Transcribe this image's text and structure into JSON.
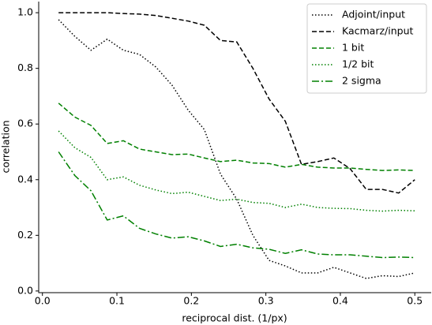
{
  "chart_data": {
    "type": "line",
    "xlabel": "reciprocal dist. (1/px)",
    "ylabel": "correlation",
    "x": [
      0.0217,
      0.0435,
      0.0652,
      0.087,
      0.1087,
      0.1304,
      0.1522,
      0.1739,
      0.1957,
      0.2174,
      0.2391,
      0.2609,
      0.2826,
      0.3043,
      0.3261,
      0.3478,
      0.3696,
      0.3913,
      0.413,
      0.4348,
      0.4565,
      0.4783,
      0.5
    ],
    "series": [
      {
        "name": "Adjoint/input",
        "color": "#000000",
        "dash": "dotted",
        "values": [
          0.975,
          0.915,
          0.865,
          0.905,
          0.865,
          0.85,
          0.805,
          0.74,
          0.65,
          0.58,
          0.42,
          0.33,
          0.2,
          0.11,
          0.09,
          0.065,
          0.065,
          0.085,
          0.065,
          0.045,
          0.055,
          0.052,
          0.065
        ]
      },
      {
        "name": "Kacmarz/input",
        "color": "#000000",
        "dash": "dashed",
        "values": [
          1.0,
          1.0,
          1.0,
          1.0,
          0.997,
          0.995,
          0.99,
          0.98,
          0.97,
          0.955,
          0.9,
          0.895,
          0.8,
          0.69,
          0.61,
          0.455,
          0.465,
          0.478,
          0.44,
          0.365,
          0.365,
          0.352,
          0.4
        ]
      },
      {
        "name": "1 bit",
        "color": "#008000",
        "dash": "dashed",
        "values": [
          0.675,
          0.625,
          0.595,
          0.53,
          0.54,
          0.51,
          0.5,
          0.49,
          0.492,
          0.478,
          0.465,
          0.47,
          0.46,
          0.458,
          0.445,
          0.455,
          0.445,
          0.442,
          0.442,
          0.437,
          0.433,
          0.435,
          0.433
        ]
      },
      {
        "name": "1/2 bit",
        "color": "#008000",
        "dash": "dotted",
        "values": [
          0.575,
          0.515,
          0.48,
          0.4,
          0.41,
          0.38,
          0.363,
          0.35,
          0.355,
          0.34,
          0.325,
          0.33,
          0.318,
          0.315,
          0.3,
          0.312,
          0.3,
          0.297,
          0.296,
          0.29,
          0.287,
          0.29,
          0.288
        ]
      },
      {
        "name": "2 sigma",
        "color": "#008000",
        "dash": "dashdot",
        "values": [
          0.5,
          0.415,
          0.36,
          0.255,
          0.27,
          0.225,
          0.205,
          0.19,
          0.195,
          0.18,
          0.16,
          0.168,
          0.155,
          0.15,
          0.135,
          0.148,
          0.133,
          0.13,
          0.13,
          0.125,
          0.12,
          0.122,
          0.12
        ]
      }
    ],
    "xlim": [
      -0.005,
      0.522
    ],
    "ylim": [
      -0.006,
      1.04
    ],
    "xticks": [
      {
        "value": 0,
        "label": "0.0"
      },
      0.1,
      0.2,
      0.3,
      0.4,
      0.5
    ],
    "yticks": [
      {
        "value": 0,
        "label": "0.0"
      },
      0.2,
      0.4,
      0.6,
      0.8,
      {
        "value": 1,
        "label": "1.0"
      }
    ],
    "legend": "upper right"
  }
}
